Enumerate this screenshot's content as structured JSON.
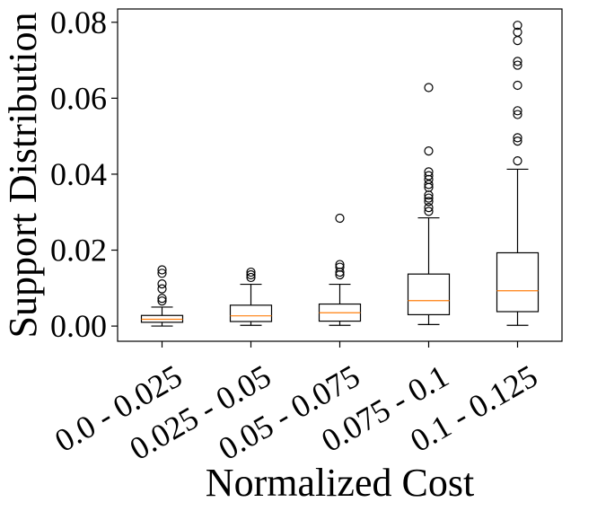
{
  "chart_data": {
    "type": "boxplot",
    "title": "",
    "xlabel": "Normalized Cost",
    "ylabel": "Support Distribution",
    "ylim": [
      -0.004,
      0.0835
    ],
    "yticks": [
      0.0,
      0.02,
      0.04,
      0.06,
      0.08
    ],
    "ytick_labels": [
      "0.00",
      "0.02",
      "0.04",
      "0.06",
      "0.08"
    ],
    "grid": false,
    "box_color": "#000000",
    "median_color": "#ff7f0e",
    "categories": [
      "0.0 - 0.025",
      "0.025 - 0.05",
      "0.05 - 0.075",
      "0.075 - 0.1",
      "0.1 - 0.125"
    ],
    "boxes": [
      {
        "category": "0.0 - 0.025",
        "whisker_low": 0.0,
        "q1": 0.001,
        "median": 0.0018,
        "q3": 0.0028,
        "whisker_high": 0.005,
        "outliers": [
          0.0148,
          0.0139,
          0.0111,
          0.0098,
          0.0073,
          0.0066
        ]
      },
      {
        "category": "0.025 - 0.05",
        "whisker_low": 0.0002,
        "q1": 0.0012,
        "median": 0.0027,
        "q3": 0.0055,
        "whisker_high": 0.011,
        "outliers": [
          0.0142,
          0.0135,
          0.0128
        ]
      },
      {
        "category": "0.05 - 0.075",
        "whisker_low": 0.0002,
        "q1": 0.0013,
        "median": 0.0035,
        "q3": 0.0058,
        "whisker_high": 0.011,
        "outliers": [
          0.0284,
          0.0162,
          0.0155,
          0.0142,
          0.0135
        ]
      },
      {
        "category": "0.075 - 0.1",
        "whisker_low": 0.0004,
        "q1": 0.003,
        "median": 0.0067,
        "q3": 0.0137,
        "whisker_high": 0.0285,
        "outliers": [
          0.0628,
          0.0461,
          0.0406,
          0.0396,
          0.0386,
          0.0373,
          0.0365,
          0.0345,
          0.0337,
          0.0328,
          0.0312,
          0.0302
        ]
      },
      {
        "category": "0.1 - 0.125",
        "whisker_low": 0.0002,
        "q1": 0.0038,
        "median": 0.0093,
        "q3": 0.0193,
        "whisker_high": 0.0413,
        "outliers": [
          0.0792,
          0.0774,
          0.0752,
          0.0697,
          0.0687,
          0.0634,
          0.0567,
          0.0557,
          0.0496,
          0.0487,
          0.0435
        ]
      }
    ]
  }
}
